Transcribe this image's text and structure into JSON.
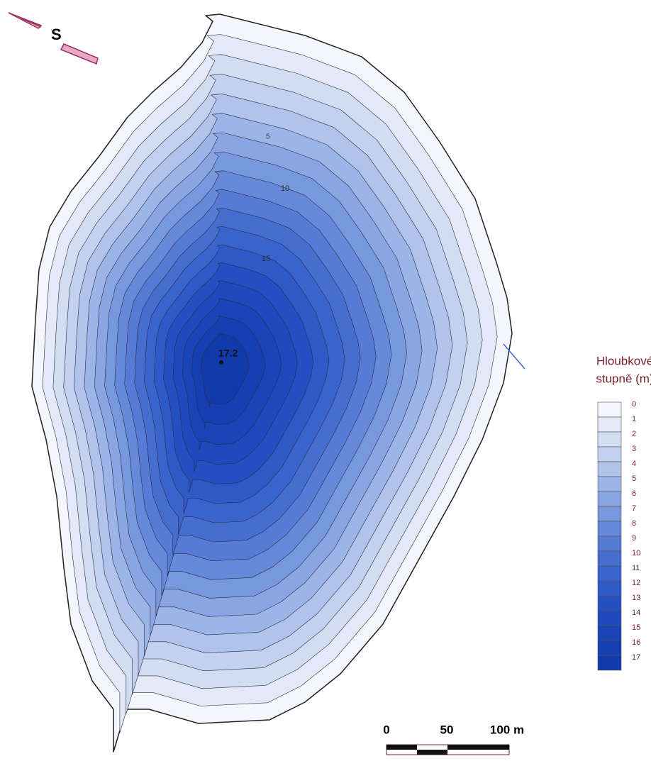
{
  "north_arrow": {
    "label": "S"
  },
  "contour_labels": [
    "5",
    "10",
    "15"
  ],
  "max_depth": {
    "label": "17.2"
  },
  "legend": {
    "title": [
      "Hloubkové",
      "stupně (m)"
    ],
    "levels": [
      0,
      1,
      2,
      3,
      4,
      5,
      6,
      7,
      8,
      9,
      10,
      11,
      12,
      13,
      14,
      15,
      16,
      17
    ],
    "colors": [
      "#f4f6fb",
      "#e3e9f6",
      "#d3ddf2",
      "#c2d1ee",
      "#b0c3ea",
      "#9db5e6",
      "#8aa6e2",
      "#7898de",
      "#6689d9",
      "#557bd4",
      "#466ecf",
      "#3a63cb",
      "#2f59c6",
      "#2650c1",
      "#1f49bc",
      "#1a43b6",
      "#163eb0",
      "#123aab"
    ]
  },
  "scale_bar": {
    "labels": [
      "0",
      "50",
      "100 m"
    ]
  }
}
